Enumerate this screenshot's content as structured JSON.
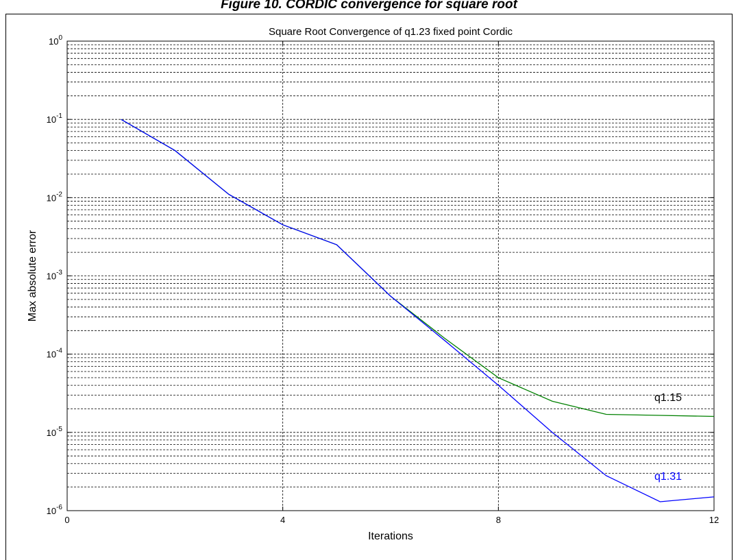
{
  "figure_caption": "Figure 10. CORDIC convergence for square root",
  "colors": {
    "q1_15": "#008000",
    "q1_31": "#0000ff",
    "grid": "#000000",
    "axes": "#000000",
    "background": "#ffffff"
  },
  "chart_data": {
    "type": "line",
    "title": "Square Root Convergence of q1.23 fixed point Cordic",
    "xlabel": "Iterations",
    "ylabel": "Max absolute error",
    "xlim": [
      0,
      12
    ],
    "ylim": [
      1e-06,
      1
    ],
    "yscale": "log",
    "grid": "on",
    "x_ticks": [
      "0",
      "4",
      "8",
      "12"
    ],
    "y_ticks": [
      {
        "base": "10",
        "exp": "0"
      },
      {
        "base": "10",
        "exp": "-1"
      },
      {
        "base": "10",
        "exp": "-2"
      },
      {
        "base": "10",
        "exp": "-3"
      },
      {
        "base": "10",
        "exp": "-4"
      },
      {
        "base": "10",
        "exp": "-5"
      },
      {
        "base": "10",
        "exp": "-6"
      }
    ],
    "x": [
      1,
      2,
      3,
      4,
      5,
      6,
      7,
      8,
      9,
      10,
      11,
      12
    ],
    "series": [
      {
        "name": "q1.15",
        "values": [
          0.1,
          0.04,
          0.011,
          0.0045,
          0.0025,
          0.00055,
          0.00016,
          5e-05,
          2.5e-05,
          1.7e-05,
          1.65e-05,
          1.6e-05
        ]
      },
      {
        "name": "q1.31",
        "values": [
          0.1,
          0.04,
          0.011,
          0.0045,
          0.0025,
          0.00055,
          0.00015,
          4e-05,
          1e-05,
          2.8e-06,
          1.3e-06,
          1.5e-06
        ]
      }
    ],
    "annotations": [
      "q1.15",
      "q1.31"
    ]
  }
}
